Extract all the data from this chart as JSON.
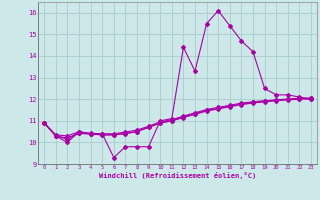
{
  "xlabel": "Windchill (Refroidissement éolien,°C)",
  "bg_color": "#cce8e8",
  "grid_color": "#aacccc",
  "line_color": "#aa00aa",
  "x_values": [
    0,
    1,
    2,
    3,
    4,
    5,
    6,
    7,
    8,
    9,
    10,
    11,
    12,
    13,
    14,
    15,
    16,
    17,
    18,
    19,
    20,
    21,
    22,
    23
  ],
  "series1": [
    10.9,
    10.3,
    10.0,
    10.5,
    10.4,
    10.4,
    9.3,
    9.8,
    9.8,
    9.8,
    11.0,
    11.1,
    14.4,
    13.3,
    15.5,
    16.1,
    15.4,
    14.7,
    14.2,
    12.5,
    12.2,
    12.2,
    12.1,
    12.0
  ],
  "series2": [
    10.9,
    10.35,
    10.3,
    10.5,
    10.4,
    10.35,
    10.35,
    10.4,
    10.5,
    10.7,
    10.9,
    11.0,
    11.15,
    11.3,
    11.45,
    11.55,
    11.65,
    11.75,
    11.82,
    11.88,
    11.93,
    11.97,
    12.0,
    12.0
  ],
  "series3": [
    10.9,
    10.3,
    10.2,
    10.45,
    10.42,
    10.4,
    10.4,
    10.48,
    10.57,
    10.75,
    10.95,
    11.05,
    11.22,
    11.37,
    11.52,
    11.62,
    11.72,
    11.82,
    11.88,
    11.93,
    11.97,
    12.01,
    12.04,
    12.05
  ],
  "series4": [
    10.9,
    10.3,
    10.15,
    10.42,
    10.38,
    10.35,
    10.35,
    10.42,
    10.5,
    10.7,
    10.9,
    11.0,
    11.18,
    11.33,
    11.48,
    11.58,
    11.68,
    11.78,
    11.85,
    11.9,
    11.95,
    11.99,
    12.02,
    12.05
  ],
  "ylim": [
    9.0,
    16.5
  ],
  "xlim": [
    -0.5,
    23.5
  ],
  "yticks": [
    9,
    10,
    11,
    12,
    13,
    14,
    15,
    16
  ],
  "xticks": [
    0,
    1,
    2,
    3,
    4,
    5,
    6,
    7,
    8,
    9,
    10,
    11,
    12,
    13,
    14,
    15,
    16,
    17,
    18,
    19,
    20,
    21,
    22,
    23
  ]
}
